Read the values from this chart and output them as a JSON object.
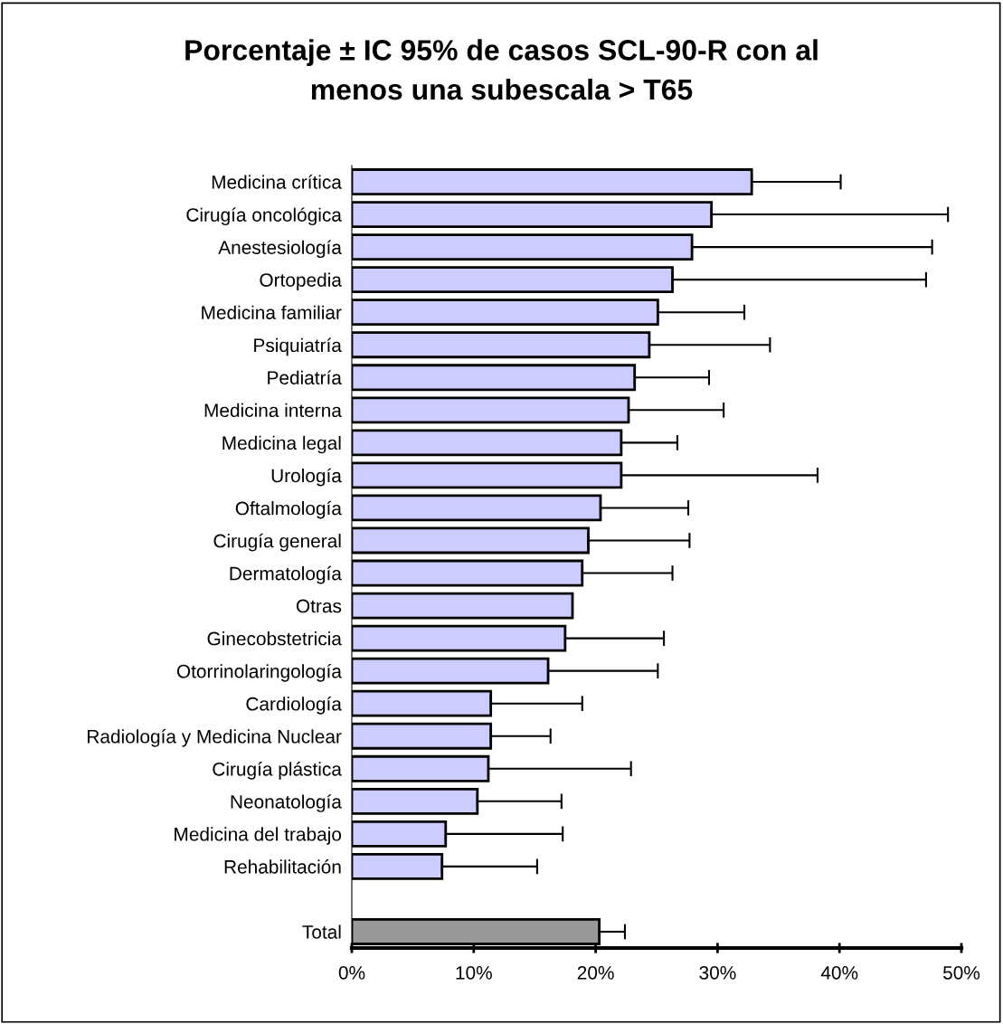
{
  "chart_data": {
    "type": "bar",
    "orientation": "horizontal",
    "title": "Porcentaje ± IC 95% de casos SCL-90-R con al\nmenos una subescala > T65",
    "categories": [
      "Medicina crítica",
      "Cirugía oncológica",
      "Anestesiología",
      "Ortopedia",
      "Medicina familiar",
      "Psiquiatría",
      "Pediatría",
      "Medicina interna",
      "Medicina legal",
      "Urología",
      "Oftalmología",
      "Cirugía general",
      "Dermatología",
      "Otras",
      "Ginecobstetricia",
      "Otorrinolaringología",
      "Cardiología",
      "Radiología y Medicina Nuclear",
      "Cirugía plástica",
      "Neonatología",
      "Medicina del trabajo",
      "Rehabilitación",
      null,
      "Total"
    ],
    "values": [
      32.8,
      29.5,
      27.9,
      26.3,
      25.1,
      24.4,
      23.2,
      22.7,
      22.1,
      22.1,
      20.4,
      19.4,
      18.9,
      18.1,
      17.5,
      16.1,
      11.4,
      11.4,
      11.2,
      10.3,
      7.7,
      7.4,
      null,
      20.3
    ],
    "errors": [
      [
        32.8,
        40.1
      ],
      [
        29.5,
        48.9
      ],
      [
        27.9,
        47.6
      ],
      [
        26.3,
        47.1
      ],
      [
        25.1,
        32.2
      ],
      [
        24.4,
        34.3
      ],
      [
        23.2,
        29.3
      ],
      [
        22.7,
        30.5
      ],
      [
        22.1,
        26.7
      ],
      [
        22.1,
        38.2
      ],
      [
        20.4,
        27.6
      ],
      [
        19.4,
        27.7
      ],
      [
        18.9,
        26.3
      ],
      null,
      [
        17.5,
        25.6
      ],
      [
        16.1,
        25.1
      ],
      [
        11.4,
        18.9
      ],
      [
        11.4,
        16.3
      ],
      [
        11.2,
        22.9
      ],
      [
        10.3,
        17.2
      ],
      [
        7.7,
        17.3
      ],
      [
        7.4,
        15.2
      ],
      null,
      [
        20.3,
        22.4
      ]
    ],
    "colors": [
      "#ccccff",
      "#ccccff",
      "#ccccff",
      "#ccccff",
      "#ccccff",
      "#ccccff",
      "#ccccff",
      "#ccccff",
      "#ccccff",
      "#ccccff",
      "#ccccff",
      "#ccccff",
      "#ccccff",
      "#ccccff",
      "#ccccff",
      "#ccccff",
      "#ccccff",
      "#ccccff",
      "#ccccff",
      "#ccccff",
      "#ccccff",
      "#ccccff",
      "#ccccff",
      "#999999"
    ],
    "xlim": [
      0,
      50
    ],
    "xticks": [
      {
        "value": 0,
        "label": "0%"
      },
      {
        "value": 10,
        "label": "10%"
      },
      {
        "value": 20,
        "label": "20%"
      },
      {
        "value": 30,
        "label": "30%"
      },
      {
        "value": 40,
        "label": "40%"
      },
      {
        "value": 50,
        "label": "50%"
      }
    ],
    "grid": false
  }
}
